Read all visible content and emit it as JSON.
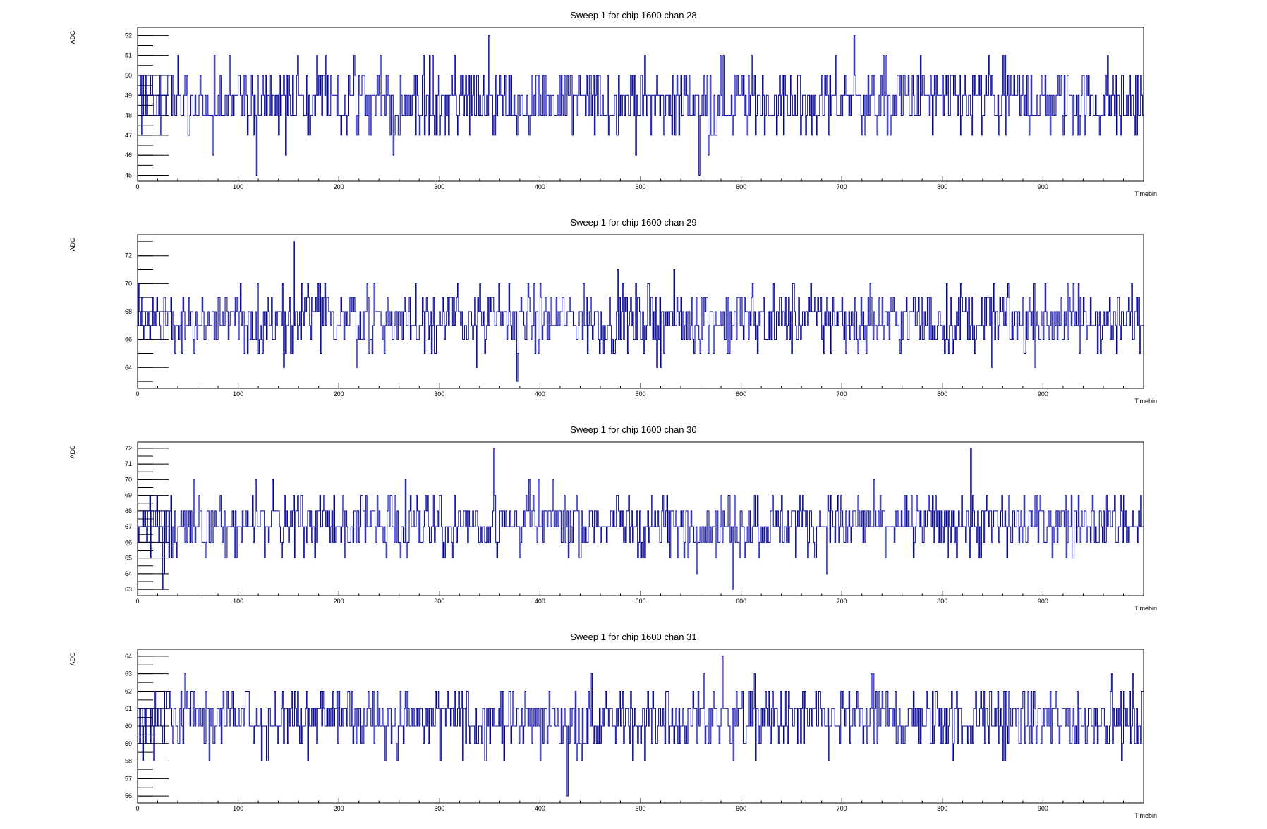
{
  "chart_data": [
    {
      "type": "line",
      "title": "Sweep 1 for chip 1600 chan 28",
      "xlabel": "Timebin",
      "ylabel": "ADC",
      "xlim": [
        0,
        1000
      ],
      "ylim": [
        44.7,
        52.4
      ],
      "xticks": [
        0,
        100,
        200,
        300,
        400,
        500,
        600,
        700,
        800,
        900
      ],
      "yticks": [
        45,
        46,
        47,
        48,
        49,
        50,
        51,
        52
      ],
      "baseline": 48.7,
      "spread": 1.2,
      "lo": 45,
      "hi": 52,
      "seed": 28,
      "series": [
        {
          "values": [],
          "color": "#000099"
        }
      ]
    },
    {
      "type": "line",
      "title": "Sweep 1 for chip 1600 chan 29",
      "xlabel": "Timebin",
      "ylabel": "ADC",
      "xlim": [
        0,
        1000
      ],
      "ylim": [
        62.5,
        73.5
      ],
      "xticks": [
        0,
        100,
        200,
        300,
        400,
        500,
        600,
        700,
        800,
        900
      ],
      "yticks": [
        64,
        66,
        68,
        70,
        72
      ],
      "baseline": 67.4,
      "spread": 1.6,
      "lo": 63,
      "hi": 73,
      "seed": 29,
      "series": [
        {
          "values": [],
          "color": "#000099"
        }
      ]
    },
    {
      "type": "line",
      "title": "Sweep 1 for chip 1600 chan 30",
      "xlabel": "Timebin",
      "ylabel": "ADC",
      "xlim": [
        0,
        1000
      ],
      "ylim": [
        62.6,
        72.4
      ],
      "xticks": [
        0,
        100,
        200,
        300,
        400,
        500,
        600,
        700,
        800,
        900
      ],
      "yticks": [
        63,
        64,
        65,
        66,
        67,
        68,
        69,
        70,
        71,
        72
      ],
      "baseline": 67.2,
      "spread": 1.3,
      "lo": 63,
      "hi": 72,
      "seed": 30,
      "series": [
        {
          "values": [],
          "color": "#000099"
        }
      ]
    },
    {
      "type": "line",
      "title": "Sweep 1 for chip 1600 chan 31",
      "xlabel": "Timebin",
      "ylabel": "ADC",
      "xlim": [
        0,
        1000
      ],
      "ylim": [
        55.6,
        64.4
      ],
      "xticks": [
        0,
        100,
        200,
        300,
        400,
        500,
        600,
        700,
        800,
        900
      ],
      "yticks": [
        56,
        57,
        58,
        59,
        60,
        61,
        62,
        63,
        64
      ],
      "baseline": 60.4,
      "spread": 1.25,
      "lo": 56,
      "hi": 64,
      "seed": 31,
      "series": [
        {
          "values": [],
          "color": "#000099"
        }
      ]
    }
  ]
}
